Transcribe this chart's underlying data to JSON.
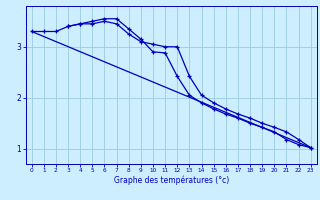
{
  "xlabel": "Graphe des températures (°c)",
  "background_color": "#cceeff",
  "grid_color": "#99ccdd",
  "line_color": "#0000bb",
  "xlim": [
    -0.5,
    23.5
  ],
  "ylim": [
    0.7,
    3.8
  ],
  "yticks": [
    1,
    2,
    3
  ],
  "xticks": [
    0,
    1,
    2,
    3,
    4,
    5,
    6,
    7,
    8,
    9,
    10,
    11,
    12,
    13,
    14,
    15,
    16,
    17,
    18,
    19,
    20,
    21,
    22,
    23
  ],
  "line1_x": [
    0,
    1,
    2,
    3,
    4,
    5,
    6,
    7,
    8,
    9,
    10,
    11,
    12,
    13,
    14,
    15,
    16,
    17,
    18,
    19,
    20,
    21,
    22,
    23
  ],
  "line1_y": [
    3.3,
    3.3,
    3.3,
    3.4,
    3.45,
    3.45,
    3.5,
    3.45,
    3.25,
    3.1,
    3.05,
    3.0,
    3.0,
    2.42,
    2.05,
    1.9,
    1.78,
    1.68,
    1.6,
    1.5,
    1.42,
    1.33,
    1.18,
    1.02
  ],
  "line2_x": [
    3,
    4,
    5,
    6,
    7,
    8,
    9,
    10,
    11,
    12,
    13,
    14,
    15,
    16,
    17,
    18,
    19,
    20,
    21,
    22,
    23
  ],
  "line2_y": [
    3.4,
    3.45,
    3.5,
    3.55,
    3.55,
    3.35,
    3.15,
    2.9,
    2.88,
    2.42,
    2.05,
    1.9,
    1.78,
    1.68,
    1.6,
    1.5,
    1.42,
    1.33,
    1.18,
    1.08,
    1.02
  ],
  "line3_x": [
    0,
    23
  ],
  "line3_y": [
    3.3,
    1.02
  ]
}
